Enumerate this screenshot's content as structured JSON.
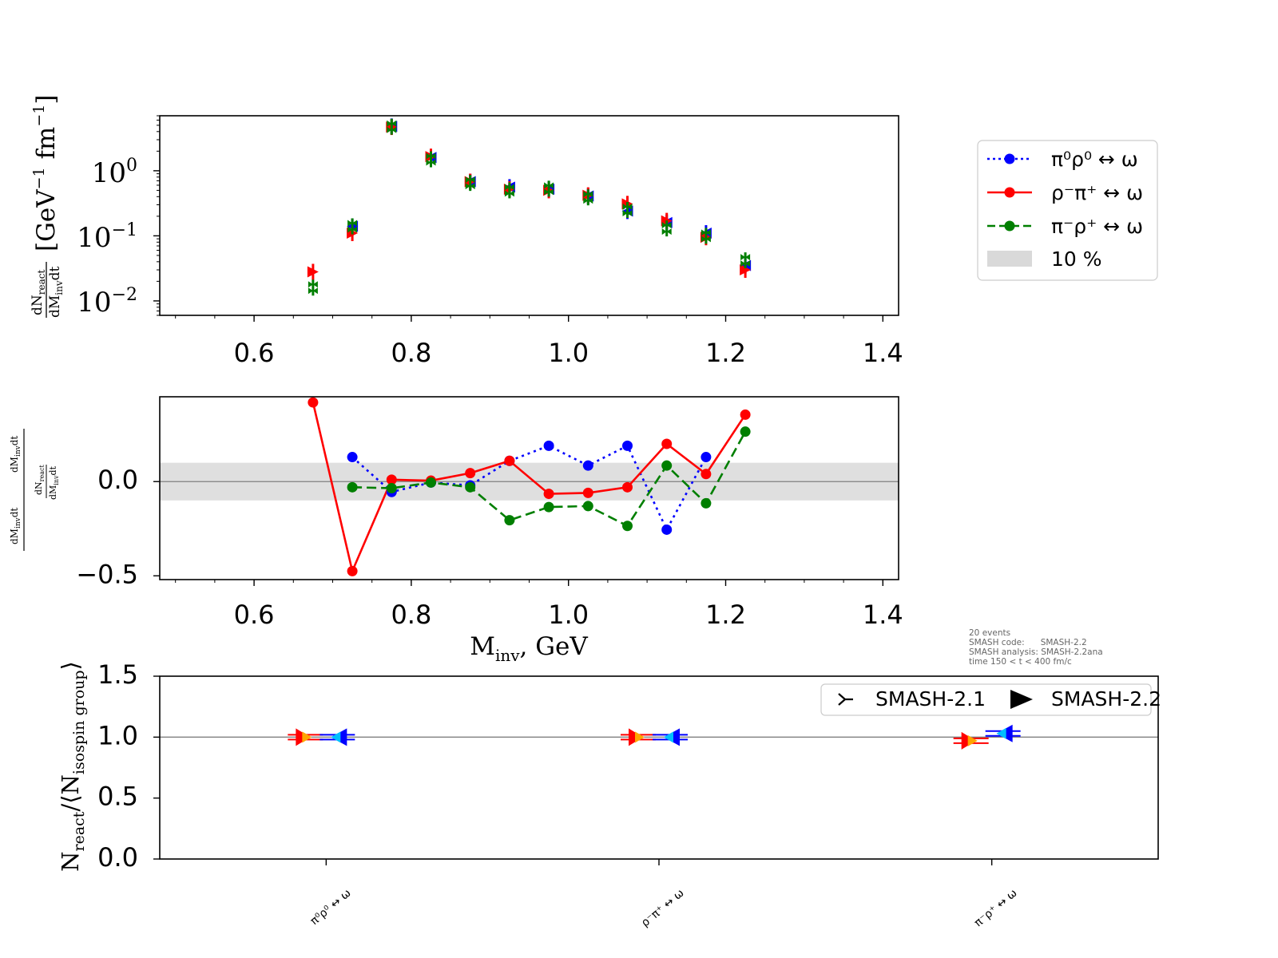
{
  "colors": {
    "p0": "#0000ff",
    "p1": "#ff0000",
    "p2": "#007f00",
    "band": "#d9d9d9",
    "grid_line": "#808080",
    "p0_marker_alt": "#00bfff",
    "p1_marker_alt": "#ffa500"
  },
  "chart_data": [
    {
      "id": "top",
      "type": "scatter",
      "yscale": "log",
      "xlim": [
        0.48,
        1.42
      ],
      "ylim": [
        0.006,
        7.0
      ],
      "xticks": [
        0.6,
        0.8,
        1.0,
        1.2,
        1.4
      ],
      "xtick_labels": [
        "0.6",
        "0.8",
        "1.0",
        "1.2",
        "1.4"
      ],
      "yticks": [
        0.01,
        0.1,
        1
      ],
      "ytick_labels": [
        {
          "base": "10",
          "exp": "−2"
        },
        {
          "base": "10",
          "exp": "−1"
        },
        {
          "base": "10",
          "exp": "0"
        }
      ],
      "ylabel": {
        "frac_num": "dN",
        "frac_num_sub": "react",
        "frac_den": "dM",
        "frac_den_sub": "inv",
        "frac_den_tail": "dt",
        "unit": "[GeV",
        "unit_exp1": "−1",
        "unit_mid": " fm",
        "unit_exp2": "−1",
        "unit_close": "]"
      },
      "x": [
        0.675,
        0.725,
        0.775,
        0.825,
        0.875,
        0.925,
        0.975,
        1.025,
        1.075,
        1.125,
        1.175,
        1.225
      ],
      "series": [
        {
          "values": [
            null,
            0.14,
            4.8,
            1.6,
            0.68,
            0.56,
            0.52,
            0.41,
            0.24,
            0.16,
            0.11,
            0.035
          ]
        },
        {
          "values": [
            0.028,
            0.11,
            4.7,
            1.65,
            0.68,
            0.52,
            0.5,
            0.42,
            0.31,
            0.17,
            0.095,
            0.03
          ]
        },
        {
          "values": [
            0.016,
            0.14,
            4.75,
            1.5,
            0.65,
            0.5,
            0.53,
            0.39,
            0.25,
            0.13,
            0.1,
            0.042
          ]
        }
      ]
    },
    {
      "id": "middle",
      "type": "line",
      "xlim": [
        0.48,
        1.42
      ],
      "ylim": [
        -0.52,
        0.45
      ],
      "xticks": [
        0.6,
        0.8,
        1.0,
        1.2,
        1.4
      ],
      "xtick_labels": [
        "0.6",
        "0.8",
        "1.0",
        "1.2",
        "1.4"
      ],
      "yticks": [
        -0.5,
        0.0
      ],
      "ytick_labels": [
        "−0.5",
        "0.0"
      ],
      "band": [
        -0.1,
        0.1
      ],
      "xlabel": {
        "main": "M",
        "sub": "inv",
        "tail": ", GeV"
      },
      "ylabel": {
        "main": "dM",
        "main_sub": "inv",
        "main_tail": "dt",
        "right": "dM",
        "right_sub": "inv",
        "right_tail": "dt",
        "num": "dN",
        "num_sub": "react",
        "den": "dM",
        "den_sub": "inv",
        "den_tail": "dt"
      },
      "x": [
        0.675,
        0.725,
        0.775,
        0.825,
        0.875,
        0.925,
        0.975,
        1.025,
        1.075,
        1.125,
        1.175,
        1.225
      ],
      "series": [
        {
          "style": "dotted",
          "values": [
            null,
            0.13,
            -0.055,
            -0.005,
            -0.02,
            0.11,
            0.19,
            0.085,
            0.19,
            -0.255,
            0.13,
            null
          ]
        },
        {
          "style": "solid",
          "values": [
            0.42,
            -0.475,
            0.01,
            0.005,
            0.045,
            0.11,
            -0.065,
            -0.06,
            -0.03,
            0.2,
            0.04,
            0.355
          ]
        },
        {
          "style": "dashed",
          "values": [
            null,
            -0.03,
            -0.035,
            -0.005,
            -0.03,
            -0.205,
            -0.135,
            -0.13,
            -0.235,
            0.085,
            -0.115,
            0.265
          ]
        }
      ]
    },
    {
      "id": "bottom",
      "type": "scatter",
      "ylim": [
        0.0,
        1.5
      ],
      "yticks": [
        0.0,
        0.5,
        1.0,
        1.5
      ],
      "ytick_labels": [
        "0.0",
        "0.5",
        "1.0",
        "1.5"
      ],
      "reference_line": 1.0,
      "ylabel": {
        "main": "N",
        "main_sub": "react",
        "mid": "/⟨N",
        "mid_sub": "isospin group",
        "close": "⟩"
      },
      "categories": [
        "π⁰ρ⁰ ↔ ω",
        "ρ⁻π⁺ ↔ ω",
        "π⁻ρ⁺ ↔ ω"
      ],
      "series": [
        {
          "version": "SMASH-2.1",
          "values": [
            1.0,
            1.0,
            0.97
          ]
        },
        {
          "version": "SMASH-2.2",
          "values": [
            1.0,
            1.0,
            1.03
          ]
        }
      ]
    }
  ],
  "legend_main": {
    "items": [
      "π⁰ρ⁰ ↔ ω",
      "ρ⁻π⁺ ↔ ω",
      "π⁻ρ⁺ ↔ ω",
      "10 %"
    ]
  },
  "legend_versions": {
    "items": [
      "SMASH-2.1",
      "SMASH-2.2"
    ]
  },
  "info": {
    "line1": "20 events",
    "line2": "SMASH code:      SMASH-2.2",
    "line3": "SMASH analysis: SMASH-2.2ana",
    "line4": "time 150 < t < 400 fm/c"
  }
}
